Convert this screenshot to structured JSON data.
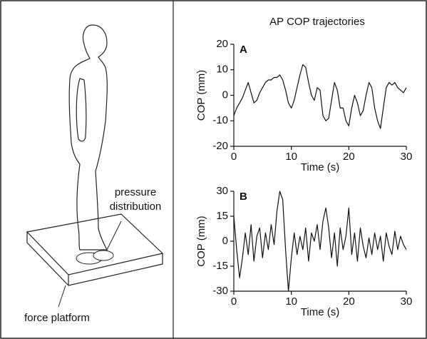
{
  "title": "AP COP trajectories",
  "diagram": {
    "labels": [
      "pressure",
      "distribution",
      "force platform"
    ]
  },
  "chart_data": [
    {
      "type": "line",
      "panel_label": "A",
      "x_label": "Time (s)",
      "y_label": "COP (mm)",
      "xlim": [
        0,
        30
      ],
      "xticks": [
        0,
        10,
        20,
        30
      ],
      "ylim": [
        -20,
        20
      ],
      "yticks": [
        -20,
        -10,
        0,
        10,
        20
      ],
      "x": [
        0,
        0.5,
        1,
        1.5,
        2,
        2.5,
        3,
        3.5,
        4,
        4.5,
        5,
        5.5,
        6,
        6.5,
        7,
        7.5,
        8,
        8.5,
        9,
        9.5,
        10,
        10.5,
        11,
        11.5,
        12,
        12.5,
        13,
        13.5,
        14,
        14.5,
        15,
        15.5,
        16,
        16.5,
        17,
        17.5,
        18,
        18.5,
        19,
        19.5,
        20,
        20.5,
        21,
        21.5,
        22,
        22.5,
        23,
        23.5,
        24,
        24.5,
        25,
        25.5,
        26,
        26.5,
        27,
        27.5,
        28,
        28.5,
        29,
        29.5,
        30
      ],
      "series": [
        {
          "color": "#111111",
          "values": [
            -8,
            -5,
            -3,
            -1,
            2,
            5,
            1,
            -3,
            -2,
            1,
            3,
            5,
            6,
            6,
            7,
            7,
            8,
            6,
            2,
            -3,
            -5,
            -2,
            3,
            8,
            12,
            11,
            5,
            0,
            -2,
            3,
            2,
            -8,
            -10,
            -9,
            -2,
            5,
            2,
            -5,
            -5,
            -10,
            -12,
            -5,
            0,
            -3,
            -8,
            -6,
            0,
            5,
            3,
            -5,
            -10,
            -13,
            -5,
            3,
            5,
            4,
            5,
            3,
            2,
            1,
            3
          ]
        }
      ]
    },
    {
      "type": "line",
      "panel_label": "B",
      "x_label": "Time (s)",
      "y_label": "COP (mm)",
      "xlim": [
        0,
        30
      ],
      "xticks": [
        0,
        10,
        20,
        30
      ],
      "ylim": [
        -30,
        30
      ],
      "yticks": [
        -30,
        -15,
        0,
        15,
        30
      ],
      "x": [
        0,
        0.5,
        1,
        1.5,
        2,
        2.5,
        3,
        3.5,
        4,
        4.5,
        5,
        5.5,
        6,
        6.5,
        7,
        7.5,
        8,
        8.5,
        9,
        9.5,
        10,
        10.5,
        11,
        11.5,
        12,
        12.5,
        13,
        13.5,
        14,
        14.5,
        15,
        15.5,
        16,
        16.5,
        17,
        17.5,
        18,
        18.5,
        19,
        19.5,
        20,
        20.5,
        21,
        21.5,
        22,
        22.5,
        23,
        23.5,
        24,
        24.5,
        25,
        25.5,
        26,
        26.5,
        27,
        27.5,
        28,
        28.5,
        29,
        29.5,
        30
      ],
      "series": [
        {
          "color": "#111111",
          "values": [
            15,
            -5,
            -22,
            -10,
            5,
            -8,
            10,
            -12,
            3,
            8,
            -10,
            5,
            -5,
            10,
            -2,
            18,
            30,
            25,
            -5,
            -30,
            -10,
            5,
            -8,
            3,
            -5,
            8,
            -12,
            5,
            0,
            10,
            -5,
            12,
            20,
            8,
            -10,
            5,
            -15,
            8,
            -5,
            3,
            20,
            -8,
            5,
            -12,
            8,
            -3,
            -10,
            2,
            -8,
            5,
            -5,
            3,
            -12,
            5,
            -3,
            -8,
            6,
            -5,
            3,
            -2,
            -5
          ]
        }
      ]
    }
  ]
}
